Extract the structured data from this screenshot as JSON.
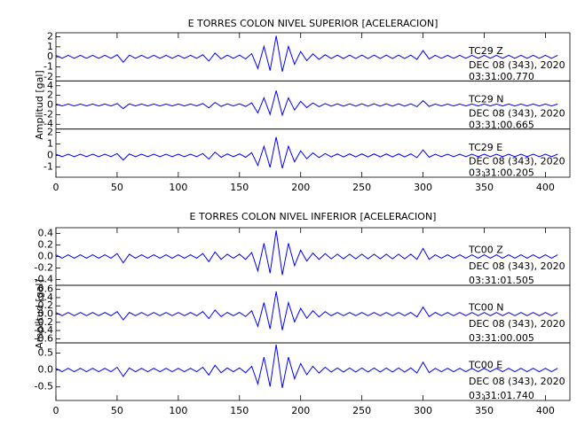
{
  "chart_data": [
    {
      "type": "line",
      "title": "E TORRES COLON NIVEL SUPERIOR [ACELERACION]",
      "ylabel": "Amplitud [gal]",
      "color": "#0000ff",
      "xlim": [
        0,
        420
      ],
      "xticks": [
        0,
        50,
        100,
        150,
        200,
        250,
        300,
        350,
        400
      ],
      "x": [
        0,
        5,
        10,
        15,
        20,
        25,
        30,
        35,
        40,
        45,
        50,
        55,
        60,
        65,
        70,
        75,
        80,
        85,
        90,
        95,
        100,
        105,
        110,
        115,
        120,
        125,
        130,
        135,
        140,
        145,
        150,
        155,
        160,
        165,
        170,
        175,
        180,
        185,
        190,
        195,
        200,
        205,
        210,
        215,
        220,
        225,
        230,
        235,
        240,
        245,
        250,
        255,
        260,
        265,
        270,
        275,
        280,
        285,
        290,
        295,
        300,
        305,
        310,
        315,
        320,
        325,
        330,
        335,
        340,
        345,
        350,
        355,
        360,
        365,
        370,
        375,
        380,
        385,
        390,
        395,
        400,
        405,
        410,
        415,
        420
      ],
      "panels": [
        {
          "label": "TC29   Z",
          "date": "DEC 08 (343), 2020",
          "time": "03:31:00.770",
          "ylim": [
            -2.4,
            2.4
          ],
          "yticks": [
            -2,
            -1,
            0,
            1,
            2
          ],
          "values": [
            0.15,
            -0.15,
            0.15,
            -0.15,
            0.15,
            -0.15,
            0.15,
            -0.15,
            0.15,
            -0.15,
            0.21,
            -0.53,
            0.17,
            -0.15,
            0.15,
            -0.15,
            0.15,
            -0.15,
            0.15,
            -0.15,
            0.15,
            -0.15,
            0.15,
            -0.15,
            0.21,
            -0.42,
            0.38,
            -0.21,
            0.17,
            -0.15,
            0.17,
            -0.21,
            0.32,
            -1.16,
            1.05,
            -1.37,
            2.1,
            -1.47,
            1.05,
            -0.74,
            0.53,
            -0.38,
            0.29,
            -0.25,
            0.21,
            -0.17,
            0.17,
            -0.17,
            0.17,
            -0.17,
            0.17,
            -0.17,
            0.17,
            -0.17,
            0.17,
            -0.17,
            0.17,
            -0.17,
            0.17,
            -0.25,
            0.63,
            -0.21,
            0.15,
            -0.15,
            0.15,
            -0.15,
            0.15,
            -0.15,
            0.15,
            -0.15,
            0.15,
            -0.15,
            0.15,
            -0.15,
            0.15,
            -0.15,
            0.15,
            -0.15,
            0.15,
            -0.15,
            0.15,
            -0.15,
            0.15
          ]
        },
        {
          "label": "TC29   N",
          "date": "DEC 08 (343), 2020",
          "time": "03:31:00.665",
          "ylim": [
            -5,
            5
          ],
          "yticks": [
            -4,
            -2,
            0,
            2,
            4
          ],
          "values": [
            0.21,
            -0.21,
            0.21,
            -0.21,
            0.21,
            -0.21,
            0.21,
            -0.21,
            0.21,
            -0.21,
            0.3,
            -0.75,
            0.24,
            -0.21,
            0.21,
            -0.21,
            0.21,
            -0.21,
            0.21,
            -0.21,
            0.21,
            -0.21,
            0.21,
            -0.21,
            0.3,
            -0.6,
            0.54,
            -0.3,
            0.24,
            -0.21,
            0.24,
            -0.3,
            0.45,
            -1.65,
            1.5,
            -1.95,
            3,
            -2.1,
            1.5,
            -1.05,
            0.75,
            -0.54,
            0.42,
            -0.36,
            0.3,
            -0.24,
            0.24,
            -0.24,
            0.24,
            -0.24,
            0.24,
            -0.24,
            0.24,
            -0.24,
            0.24,
            -0.24,
            0.24,
            -0.24,
            0.24,
            -0.36,
            0.9,
            -0.3,
            0.21,
            -0.21,
            0.21,
            -0.21,
            0.21,
            -0.21,
            0.21,
            -0.21,
            0.21,
            -0.21,
            0.21,
            -0.21,
            0.21,
            -0.21,
            0.21,
            -0.21,
            0.21,
            -0.21,
            0.21,
            -0.21,
            0.21
          ]
        },
        {
          "label": "TC29   E",
          "date": "DEC 08 (343), 2020",
          "time": "03:31:00.205",
          "ylim": [
            -1.9,
            2.3
          ],
          "yticks": [
            -1,
            0,
            1,
            2
          ],
          "values": [
            0.11,
            -0.11,
            0.11,
            -0.11,
            0.11,
            -0.11,
            0.11,
            -0.11,
            0.11,
            -0.11,
            0.16,
            -0.4,
            0.13,
            -0.11,
            0.11,
            -0.11,
            0.11,
            -0.11,
            0.11,
            -0.11,
            0.11,
            -0.11,
            0.11,
            -0.11,
            0.16,
            -0.32,
            0.29,
            -0.16,
            0.13,
            -0.11,
            0.13,
            -0.16,
            0.24,
            -0.88,
            0.8,
            -1.04,
            1.6,
            -1.12,
            0.8,
            -0.56,
            0.4,
            -0.29,
            0.22,
            -0.19,
            0.16,
            -0.13,
            0.13,
            -0.13,
            0.13,
            -0.13,
            0.13,
            -0.13,
            0.13,
            -0.13,
            0.13,
            -0.13,
            0.13,
            -0.13,
            0.13,
            -0.19,
            0.48,
            -0.16,
            0.11,
            -0.11,
            0.11,
            -0.11,
            0.11,
            -0.11,
            0.11,
            -0.11,
            0.11,
            -0.11,
            0.11,
            -0.11,
            0.11,
            -0.11,
            0.11,
            -0.11,
            0.11,
            -0.11,
            0.11,
            -0.11,
            0.11
          ]
        }
      ]
    },
    {
      "type": "line",
      "title": "E TORRES COLON NIVEL INFERIOR [ACELERACION]",
      "ylabel": "Amplitud [gal]",
      "color": "#0000ff",
      "xlim": [
        0,
        420
      ],
      "xticks": [
        0,
        50,
        100,
        150,
        200,
        250,
        300,
        350,
        400
      ],
      "x": [
        0,
        5,
        10,
        15,
        20,
        25,
        30,
        35,
        40,
        45,
        50,
        55,
        60,
        65,
        70,
        75,
        80,
        85,
        90,
        95,
        100,
        105,
        110,
        115,
        120,
        125,
        130,
        135,
        140,
        145,
        150,
        155,
        160,
        165,
        170,
        175,
        180,
        185,
        190,
        195,
        200,
        205,
        210,
        215,
        220,
        225,
        230,
        235,
        240,
        245,
        250,
        255,
        260,
        265,
        270,
        275,
        280,
        285,
        290,
        295,
        300,
        305,
        310,
        315,
        320,
        325,
        330,
        335,
        340,
        345,
        350,
        355,
        360,
        365,
        370,
        375,
        380,
        385,
        390,
        395,
        400,
        405,
        410,
        415,
        420
      ],
      "panels": [
        {
          "label": "TC00   Z",
          "date": "DEC 08 (343), 2020",
          "time": "03:31:01.505",
          "ylim": [
            -0.5,
            0.5
          ],
          "yticks": [
            -0.4,
            -0.2,
            {
              "value": 0,
              "label": "0.0"
            },
            0.2,
            0.4
          ],
          "values": [
            0.03,
            -0.03,
            0.03,
            -0.03,
            0.03,
            -0.03,
            0.03,
            -0.03,
            0.03,
            -0.03,
            0.05,
            -0.11,
            0.04,
            -0.03,
            0.03,
            -0.03,
            0.03,
            -0.03,
            0.03,
            -0.03,
            0.03,
            -0.03,
            0.03,
            -0.03,
            0.05,
            -0.09,
            0.08,
            -0.05,
            0.04,
            -0.03,
            0.04,
            -0.05,
            0.07,
            -0.25,
            0.23,
            -0.29,
            0.45,
            -0.32,
            0.23,
            -0.16,
            0.11,
            -0.08,
            0.06,
            -0.05,
            0.05,
            -0.04,
            0.04,
            -0.04,
            0.04,
            -0.04,
            0.04,
            -0.04,
            0.04,
            -0.04,
            0.04,
            -0.04,
            0.04,
            -0.04,
            0.04,
            -0.05,
            0.14,
            -0.05,
            0.03,
            -0.03,
            0.03,
            -0.03,
            0.03,
            -0.03,
            0.03,
            -0.03,
            0.03,
            -0.03,
            0.03,
            -0.03,
            0.03,
            -0.03,
            0.03,
            -0.03,
            0.03,
            -0.03,
            0.03,
            -0.03,
            0.03
          ]
        },
        {
          "label": "TC00   N",
          "date": "DEC 08 (343), 2020",
          "time": "03:31:00.005",
          "ylim": [
            -0.7,
            0.7
          ],
          "yticks": [
            -0.6,
            -0.4,
            -0.2,
            {
              "value": 0,
              "label": "0.0"
            },
            0.2,
            0.4,
            0.6
          ],
          "values": [
            0.04,
            -0.04,
            0.04,
            -0.04,
            0.04,
            -0.04,
            0.04,
            -0.04,
            0.04,
            -0.04,
            0.06,
            -0.14,
            0.04,
            -0.04,
            0.04,
            -0.04,
            0.04,
            -0.04,
            0.04,
            -0.04,
            0.04,
            -0.04,
            0.04,
            -0.04,
            0.06,
            -0.11,
            0.1,
            -0.06,
            0.04,
            -0.04,
            0.04,
            -0.06,
            0.08,
            -0.3,
            0.28,
            -0.36,
            0.55,
            -0.39,
            0.28,
            -0.19,
            0.14,
            -0.1,
            0.08,
            -0.07,
            0.06,
            -0.04,
            0.04,
            -0.04,
            0.04,
            -0.04,
            0.04,
            -0.04,
            0.04,
            -0.04,
            0.04,
            -0.04,
            0.04,
            -0.04,
            0.04,
            -0.07,
            0.17,
            -0.06,
            0.04,
            -0.04,
            0.04,
            -0.04,
            0.04,
            -0.04,
            0.04,
            -0.04,
            0.04,
            -0.04,
            0.04,
            -0.04,
            0.04,
            -0.04,
            0.04,
            -0.04,
            0.04,
            -0.04,
            0.04,
            -0.04,
            0.04
          ]
        },
        {
          "label": "TC00   E",
          "date": "DEC 08 (343), 2020",
          "time": "03:31:01.740",
          "ylim": [
            -0.9,
            0.8
          ],
          "yticks": [
            -0.5,
            {
              "value": 0,
              "label": "0.0"
            },
            0.5
          ],
          "values": [
            0.05,
            -0.05,
            0.05,
            -0.05,
            0.05,
            -0.05,
            0.05,
            -0.05,
            0.05,
            -0.05,
            0.08,
            -0.19,
            0.06,
            -0.05,
            0.05,
            -0.05,
            0.05,
            -0.05,
            0.05,
            -0.05,
            0.05,
            -0.05,
            0.05,
            -0.05,
            0.08,
            -0.15,
            0.14,
            -0.08,
            0.06,
            -0.05,
            0.06,
            -0.08,
            0.11,
            -0.41,
            0.38,
            -0.49,
            0.75,
            -0.53,
            0.38,
            -0.26,
            0.19,
            -0.14,
            0.11,
            -0.09,
            0.08,
            -0.06,
            0.06,
            -0.06,
            0.06,
            -0.06,
            0.06,
            -0.06,
            0.06,
            -0.06,
            0.06,
            -0.06,
            0.06,
            -0.06,
            0.06,
            -0.09,
            0.23,
            -0.08,
            0.05,
            -0.05,
            0.05,
            -0.05,
            0.05,
            -0.05,
            0.05,
            -0.05,
            0.05,
            -0.05,
            0.05,
            -0.05,
            0.05,
            -0.05,
            0.05,
            -0.05,
            0.05,
            -0.05,
            0.05,
            -0.05,
            0.05
          ]
        }
      ]
    }
  ]
}
